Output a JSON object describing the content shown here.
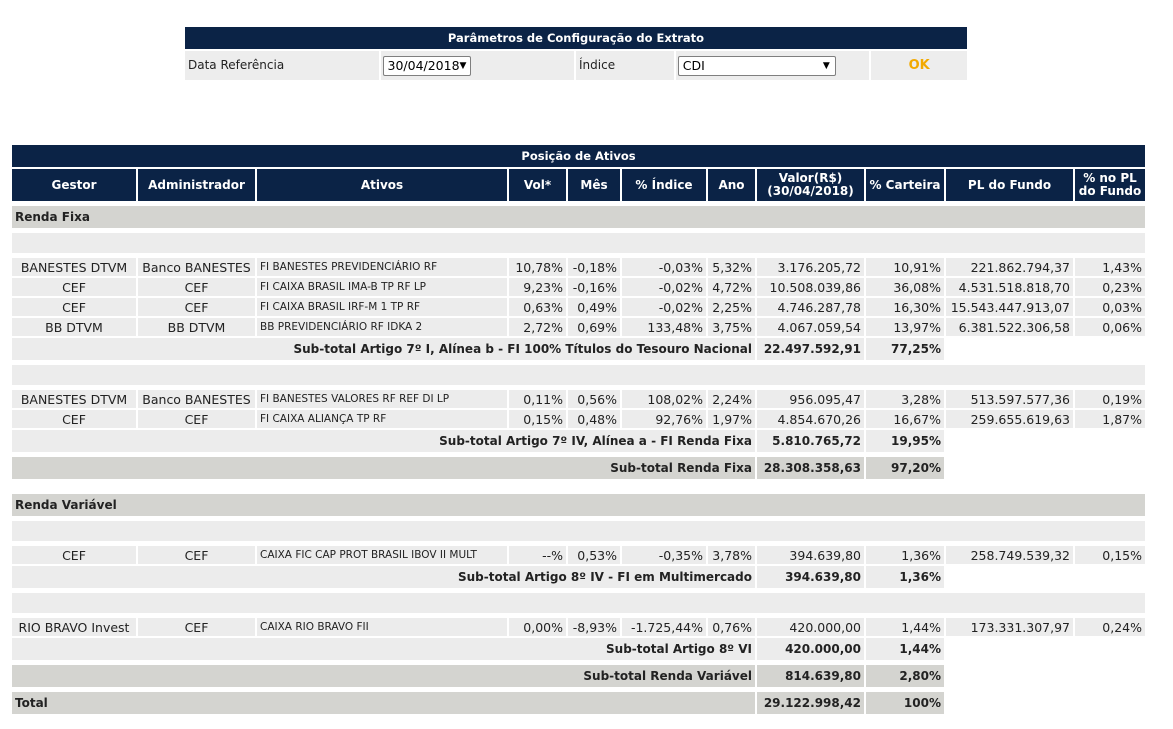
{
  "config": {
    "title": "Parâmetros de Configuração do Extrato",
    "date_label": "Data Referência",
    "date_value": "30/04/2018",
    "index_label": "Índice",
    "index_value": "CDI",
    "ok_label": "OK"
  },
  "positions": {
    "title": "Posição de Ativos",
    "headers": {
      "gestor": "Gestor",
      "administrador": "Administrador",
      "ativos": "Ativos",
      "vol": "Vol*",
      "mes": "Mês",
      "indice": "% Índice",
      "ano": "Ano",
      "valor_1": "Valor(R$)",
      "valor_2": "(30/04/2018)",
      "carteira": "% Carteira",
      "pl": "PL do Fundo",
      "pct_pl_1": "% no PL",
      "pct_pl_2": "do Fundo"
    },
    "renda_fixa": {
      "title": "Renda Fixa",
      "group1": [
        {
          "gestor": "BANESTES DTVM",
          "admin": "Banco BANESTES",
          "ativo": "FI BANESTES PREVIDENCIÁRIO RF",
          "vol": "10,78%",
          "mes": "-0,18%",
          "indice": "-0,03%",
          "ano": "5,32%",
          "valor": "3.176.205,72",
          "carteira": "10,91%",
          "pl": "221.862.794,37",
          "pct_pl": "1,43%"
        },
        {
          "gestor": "CEF",
          "admin": "CEF",
          "ativo": "FI CAIXA BRASIL IMA-B TP RF LP",
          "vol": "9,23%",
          "mes": "-0,16%",
          "indice": "-0,02%",
          "ano": "4,72%",
          "valor": "10.508.039,86",
          "carteira": "36,08%",
          "pl": "4.531.518.818,70",
          "pct_pl": "0,23%"
        },
        {
          "gestor": "CEF",
          "admin": "CEF",
          "ativo": "FI CAIXA BRASIL IRF-M 1 TP RF",
          "vol": "0,63%",
          "mes": "0,49%",
          "indice": "-0,02%",
          "ano": "2,25%",
          "valor": "4.746.287,78",
          "carteira": "16,30%",
          "pl": "15.543.447.913,07",
          "pct_pl": "0,03%"
        },
        {
          "gestor": "BB DTVM",
          "admin": "BB DTVM",
          "ativo": "BB PREVIDENCIÁRIO RF IDKA 2",
          "vol": "2,72%",
          "mes": "0,69%",
          "indice": "133,48%",
          "ano": "3,75%",
          "valor": "4.067.059,54",
          "carteira": "13,97%",
          "pl": "6.381.522.306,58",
          "pct_pl": "0,06%"
        }
      ],
      "subtotal1": {
        "label": "Sub-total Artigo 7º I, Alínea b - FI 100% Títulos do Tesouro Nacional",
        "valor": "22.497.592,91",
        "carteira": "77,25%"
      },
      "group2": [
        {
          "gestor": "BANESTES DTVM",
          "admin": "Banco BANESTES",
          "ativo": "FI BANESTES VALORES RF REF DI LP",
          "vol": "0,11%",
          "mes": "0,56%",
          "indice": "108,02%",
          "ano": "2,24%",
          "valor": "956.095,47",
          "carteira": "3,28%",
          "pl": "513.597.577,36",
          "pct_pl": "0,19%"
        },
        {
          "gestor": "CEF",
          "admin": "CEF",
          "ativo": "FI CAIXA ALIANÇA TP RF",
          "vol": "0,15%",
          "mes": "0,48%",
          "indice": "92,76%",
          "ano": "1,97%",
          "valor": "4.854.670,26",
          "carteira": "16,67%",
          "pl": "259.655.619,63",
          "pct_pl": "1,87%"
        }
      ],
      "subtotal2": {
        "label": "Sub-total Artigo 7º IV, Alínea a - FI Renda Fixa",
        "valor": "5.810.765,72",
        "carteira": "19,95%"
      },
      "total": {
        "label": "Sub-total Renda Fixa",
        "valor": "28.308.358,63",
        "carteira": "97,20%"
      }
    },
    "renda_variavel": {
      "title": "Renda Variável",
      "group1": [
        {
          "gestor": "CEF",
          "admin": "CEF",
          "ativo": "CAIXA FIC CAP PROT BRASIL IBOV II MULT",
          "vol": "--%",
          "mes": "0,53%",
          "indice": "-0,35%",
          "ano": "3,78%",
          "valor": "394.639,80",
          "carteira": "1,36%",
          "pl": "258.749.539,32",
          "pct_pl": "0,15%"
        }
      ],
      "subtotal1": {
        "label": "Sub-total Artigo 8º IV - FI em Multimercado",
        "valor": "394.639,80",
        "carteira": "1,36%"
      },
      "group2": [
        {
          "gestor": "RIO BRAVO Invest",
          "admin": "CEF",
          "ativo": "CAIXA RIO BRAVO FII",
          "vol": "0,00%",
          "mes": "-8,93%",
          "indice": "-1.725,44%",
          "ano": "0,76%",
          "valor": "420.000,00",
          "carteira": "1,44%",
          "pl": "173.331.307,97",
          "pct_pl": "0,24%"
        }
      ],
      "subtotal2": {
        "label": "Sub-total Artigo 8º VI",
        "valor": "420.000,00",
        "carteira": "1,44%"
      },
      "total": {
        "label": "Sub-total Renda Variável",
        "valor": "814.639,80",
        "carteira": "2,80%"
      }
    },
    "grand_total": {
      "label": "Total",
      "valor": "29.122.998,42",
      "carteira": "100%"
    }
  }
}
